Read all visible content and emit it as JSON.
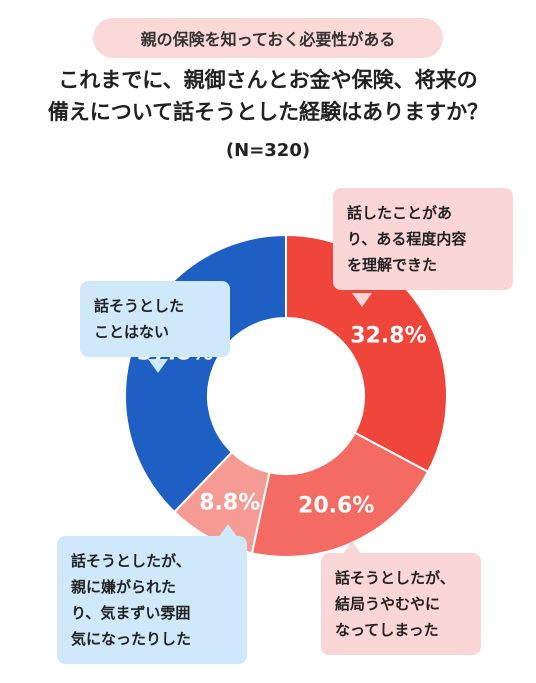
{
  "header": {
    "pill": "親の保険を知っておく必要性がある",
    "title_line1": "これまでに、親御さんとお金や保険、将来の",
    "title_line2": "備えについて話そうとした経験はありますか？",
    "sample": "(N=320)"
  },
  "colors": {
    "red": "#f0453a",
    "salmon": "#f36b62",
    "light_pink": "#f59b94",
    "blue": "#1e5fc4",
    "callout_pink": "#fbd6d6",
    "callout_blue": "#cfe9fb"
  },
  "chart_data": {
    "type": "pie",
    "title": "",
    "donut": true,
    "slices": [
      {
        "label": "話したことがあり、ある程度内容を理解できた",
        "value": 32.8,
        "display": "32.8%",
        "lines": [
          "話したことがあ",
          "り、ある程度内容",
          "を理解できた"
        ],
        "color": "#f0453a"
      },
      {
        "label": "話そうとしたが、結局うやむやになってしまった",
        "value": 20.6,
        "display": "20.6%",
        "lines": [
          "話そうとしたが、",
          "結局うやむやに",
          "なってしまった"
        ],
        "color": "#f36b62"
      },
      {
        "label": "話そうとしたが、親に嫌がられたり、気まずい雰囲気になったりした",
        "value": 8.8,
        "display": "8.8%",
        "lines": [
          "話そうとしたが、",
          "親に嫌がられた",
          "り、気まずい雰囲",
          "気になったりした"
        ],
        "color": "#f59b94"
      },
      {
        "label": "話そうとしたことはない",
        "value": 37.8,
        "display": "37.8%",
        "lines": [
          "話そうとした",
          "ことはない"
        ],
        "color": "#1e5fc4"
      }
    ]
  }
}
